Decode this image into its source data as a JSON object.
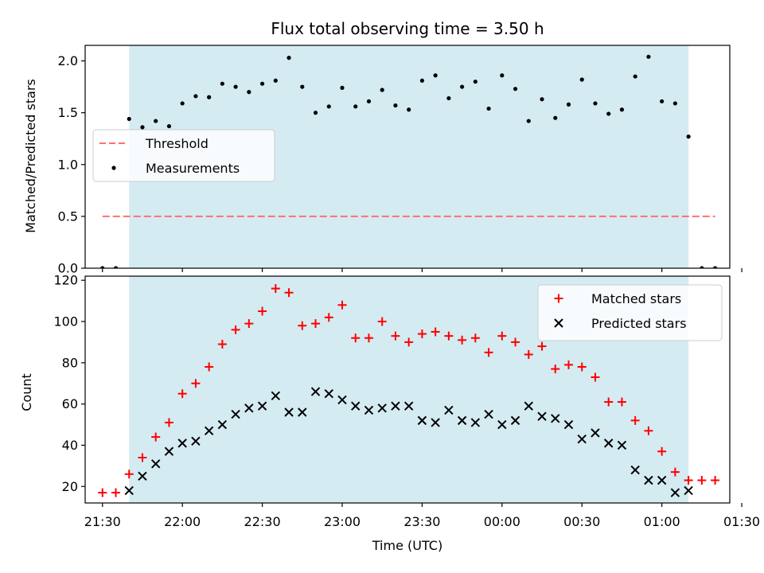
{
  "chart_data": [
    {
      "type": "scatter",
      "title": "Flux total observing time = 3.50 h",
      "xlabel": "",
      "ylabel": "Matched/Predicted stars",
      "ylim": [
        0,
        2.15
      ],
      "y_ticks": [
        "0.0",
        "0.5",
        "1.0",
        "1.5",
        "2.0"
      ],
      "shaded_region": {
        "start": "21:40",
        "end": "01:10",
        "color": "#add8e6"
      },
      "legend": {
        "position": "center-left",
        "entries": [
          {
            "label": "Threshold",
            "color": "#ff7070",
            "marker": "dashed-line"
          },
          {
            "label": "Measurements",
            "color": "#000000",
            "marker": "dot"
          }
        ]
      },
      "series": [
        {
          "name": "Threshold",
          "color": "#ff7070",
          "x": [
            "21:30",
            "01:20"
          ],
          "y": [
            0.5,
            0.5
          ]
        },
        {
          "name": "Measurements",
          "color": "#000000",
          "x": [
            "21:30",
            "21:35",
            "21:40",
            "21:45",
            "21:50",
            "21:55",
            "22:00",
            "22:05",
            "22:10",
            "22:15",
            "22:20",
            "22:25",
            "22:30",
            "22:35",
            "22:40",
            "22:45",
            "22:50",
            "22:55",
            "23:00",
            "23:05",
            "23:10",
            "23:15",
            "23:20",
            "23:25",
            "23:30",
            "23:35",
            "23:40",
            "23:45",
            "23:50",
            "23:55",
            "00:00",
            "00:05",
            "00:10",
            "00:15",
            "00:20",
            "00:25",
            "00:30",
            "00:35",
            "00:40",
            "00:45",
            "00:50",
            "00:55",
            "01:00",
            "01:05",
            "01:10",
            "01:15",
            "01:20"
          ],
          "y": [
            0.0,
            0.0,
            1.44,
            1.36,
            1.42,
            1.37,
            1.59,
            1.66,
            1.65,
            1.78,
            1.75,
            1.7,
            1.78,
            1.81,
            2.03,
            1.75,
            1.5,
            1.56,
            1.74,
            1.56,
            1.61,
            1.72,
            1.57,
            1.53,
            1.81,
            1.86,
            1.64,
            1.75,
            1.8,
            1.54,
            1.86,
            1.73,
            1.42,
            1.63,
            1.45,
            1.58,
            1.82,
            1.59,
            1.49,
            1.53,
            1.85,
            2.04,
            1.61,
            1.59,
            1.27,
            0.0,
            0.0
          ]
        }
      ]
    },
    {
      "type": "scatter",
      "title": "",
      "xlabel": "Time (UTC)",
      "ylabel": "Count",
      "ylim": [
        12,
        122
      ],
      "y_ticks": [
        "20",
        "40",
        "60",
        "80",
        "100",
        "120"
      ],
      "x_ticks": [
        "21:30",
        "22:00",
        "22:30",
        "23:00",
        "23:30",
        "00:00",
        "00:30",
        "01:00",
        "01:30"
      ],
      "shaded_region": {
        "start": "21:40",
        "end": "01:10",
        "color": "#add8e6"
      },
      "legend": {
        "position": "top-right",
        "entries": [
          {
            "label": "Matched stars",
            "color": "#ff0000",
            "marker": "plus"
          },
          {
            "label": "Predicted stars",
            "color": "#000000",
            "marker": "x"
          }
        ]
      },
      "series": [
        {
          "name": "Matched stars",
          "color": "#ff0000",
          "x": [
            "21:30",
            "21:35",
            "21:40",
            "21:45",
            "21:50",
            "21:55",
            "22:00",
            "22:05",
            "22:10",
            "22:15",
            "22:20",
            "22:25",
            "22:30",
            "22:35",
            "22:40",
            "22:45",
            "22:50",
            "22:55",
            "23:00",
            "23:05",
            "23:10",
            "23:15",
            "23:20",
            "23:25",
            "23:30",
            "23:35",
            "23:40",
            "23:45",
            "23:50",
            "23:55",
            "00:00",
            "00:05",
            "00:10",
            "00:15",
            "00:20",
            "00:25",
            "00:30",
            "00:35",
            "00:40",
            "00:45",
            "00:50",
            "00:55",
            "01:00",
            "01:05",
            "01:10",
            "01:15",
            "01:20"
          ],
          "y": [
            17,
            17,
            26,
            34,
            44,
            51,
            65,
            70,
            78,
            89,
            96,
            99,
            105,
            116,
            114,
            98,
            99,
            102,
            108,
            92,
            92,
            100,
            93,
            90,
            94,
            95,
            93,
            91,
            92,
            85,
            93,
            90,
            84,
            88,
            77,
            79,
            78,
            73,
            61,
            61,
            52,
            47,
            37,
            27,
            23,
            23,
            23
          ]
        },
        {
          "name": "Predicted stars",
          "color": "#000000",
          "x": [
            "21:40",
            "21:45",
            "21:50",
            "21:55",
            "22:00",
            "22:05",
            "22:10",
            "22:15",
            "22:20",
            "22:25",
            "22:30",
            "22:35",
            "22:40",
            "22:45",
            "22:50",
            "22:55",
            "23:00",
            "23:05",
            "23:10",
            "23:15",
            "23:20",
            "23:25",
            "23:30",
            "23:35",
            "23:40",
            "23:45",
            "23:50",
            "23:55",
            "00:00",
            "00:05",
            "00:10",
            "00:15",
            "00:20",
            "00:25",
            "00:30",
            "00:35",
            "00:40",
            "00:45",
            "00:50",
            "00:55",
            "01:00",
            "01:05",
            "01:10"
          ],
          "y": [
            18,
            25,
            31,
            37,
            41,
            42,
            47,
            50,
            55,
            58,
            59,
            64,
            56,
            56,
            66,
            65,
            62,
            59,
            57,
            58,
            59,
            59,
            52,
            51,
            57,
            52,
            51,
            55,
            50,
            52,
            59,
            54,
            53,
            50,
            43,
            46,
            41,
            40,
            28,
            23,
            23,
            17,
            18
          ]
        }
      ]
    }
  ]
}
